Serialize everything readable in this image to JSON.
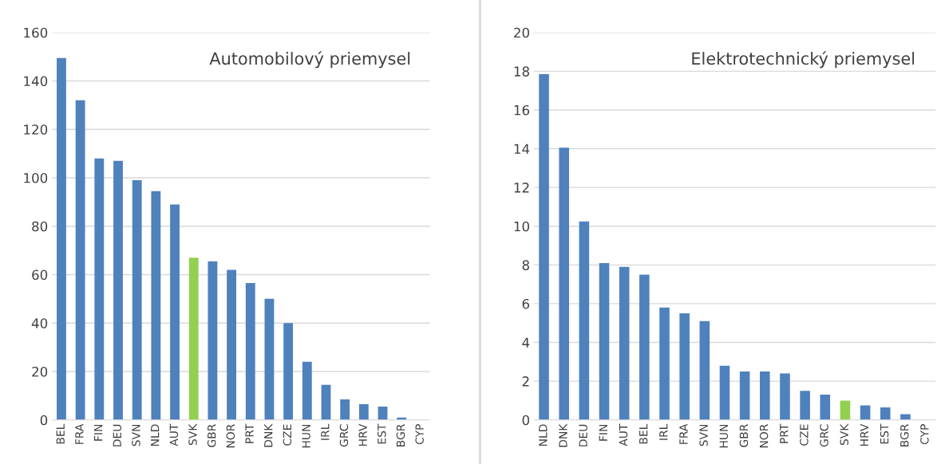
{
  "chart_data": [
    {
      "type": "bar",
      "title": "Automobilový priemysel",
      "categories": [
        "BEL",
        "FRA",
        "FIN",
        "DEU",
        "SVN",
        "NLD",
        "AUT",
        "SVK",
        "GBR",
        "NOR",
        "PRT",
        "DNK",
        "CZE",
        "HUN",
        "IRL",
        "GRC",
        "HRV",
        "EST",
        "BGR",
        "CYP"
      ],
      "values": [
        149.5,
        132,
        108,
        107,
        99,
        94.5,
        89,
        67,
        65.5,
        62,
        56.5,
        50,
        40,
        24,
        14.5,
        8.5,
        6.5,
        5.5,
        1,
        0
      ],
      "colors": [
        "#4f81bd",
        "#4f81bd",
        "#4f81bd",
        "#4f81bd",
        "#4f81bd",
        "#4f81bd",
        "#4f81bd",
        "#92d050",
        "#4f81bd",
        "#4f81bd",
        "#4f81bd",
        "#4f81bd",
        "#4f81bd",
        "#4f81bd",
        "#4f81bd",
        "#4f81bd",
        "#4f81bd",
        "#4f81bd",
        "#4f81bd",
        "#4f81bd"
      ],
      "ylim": [
        0,
        160
      ],
      "yticks": [
        0,
        20,
        40,
        60,
        80,
        100,
        120,
        140,
        160
      ],
      "grid": "y"
    },
    {
      "type": "bar",
      "title": "Elektrotechnický priemysel",
      "categories": [
        "NLD",
        "DNK",
        "DEU",
        "FIN",
        "AUT",
        "BEL",
        "IRL",
        "FRA",
        "SVN",
        "HUN",
        "GBR",
        "NOR",
        "PRT",
        "CZE",
        "GRC",
        "SVK",
        "HRV",
        "EST",
        "BGR",
        "CYP"
      ],
      "values": [
        17.85,
        14.05,
        10.25,
        8.1,
        7.9,
        7.5,
        5.8,
        5.5,
        5.1,
        2.8,
        2.5,
        2.5,
        2.4,
        1.5,
        1.3,
        1.0,
        0.75,
        0.65,
        0.3,
        0
      ],
      "colors": [
        "#4f81bd",
        "#4f81bd",
        "#4f81bd",
        "#4f81bd",
        "#4f81bd",
        "#4f81bd",
        "#4f81bd",
        "#4f81bd",
        "#4f81bd",
        "#4f81bd",
        "#4f81bd",
        "#4f81bd",
        "#4f81bd",
        "#4f81bd",
        "#4f81bd",
        "#92d050",
        "#4f81bd",
        "#4f81bd",
        "#4f81bd",
        "#4f81bd"
      ],
      "ylim": [
        0,
        20
      ],
      "yticks": [
        0,
        2,
        4,
        6,
        8,
        10,
        12,
        14,
        16,
        18,
        20
      ],
      "grid": "y"
    }
  ]
}
